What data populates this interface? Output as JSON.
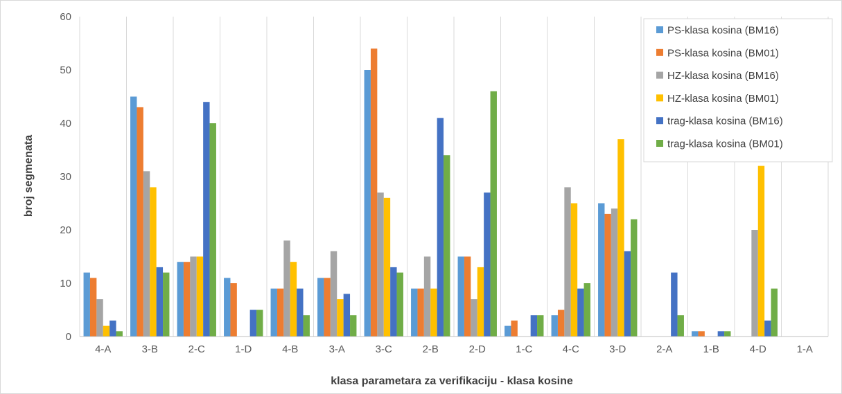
{
  "chart_data": {
    "type": "bar",
    "title": "",
    "xlabel": "klasa parametara za verifikaciju - klasa kosine",
    "ylabel": "broj segmenata",
    "ylim": [
      0,
      60
    ],
    "yticks": [
      0,
      10,
      20,
      30,
      40,
      50,
      60
    ],
    "grid": "vertical",
    "legend_position": "top-right",
    "categories": [
      "4-A",
      "3-B",
      "2-C",
      "1-D",
      "4-B",
      "3-A",
      "3-C",
      "2-B",
      "2-D",
      "1-C",
      "4-C",
      "3-D",
      "2-A",
      "1-B",
      "4-D",
      "1-A"
    ],
    "series": [
      {
        "name": "PS-klasa kosina (BM16)",
        "color": "#5b9bd5",
        "values": [
          12,
          45,
          14,
          11,
          9,
          11,
          50,
          9,
          15,
          2,
          4,
          25,
          0,
          1,
          0,
          0
        ]
      },
      {
        "name": "PS-klasa kosina (BM01)",
        "color": "#ed7d31",
        "values": [
          11,
          43,
          14,
          10,
          9,
          11,
          54,
          9,
          15,
          3,
          5,
          23,
          0,
          1,
          0,
          0
        ]
      },
      {
        "name": "HZ-klasa kosina (BM16)",
        "color": "#a5a5a5",
        "values": [
          7,
          31,
          15,
          0,
          18,
          16,
          27,
          15,
          7,
          0,
          28,
          24,
          0,
          0,
          20,
          0
        ]
      },
      {
        "name": "HZ-klasa kosina (BM01)",
        "color": "#ffc000",
        "values": [
          2,
          28,
          15,
          0,
          14,
          7,
          26,
          9,
          13,
          0,
          25,
          37,
          0,
          0,
          32,
          0
        ]
      },
      {
        "name": "trag-klasa kosina (BM16)",
        "color": "#4472c4",
        "values": [
          3,
          13,
          44,
          5,
          9,
          8,
          13,
          41,
          27,
          4,
          9,
          16,
          12,
          1,
          3,
          0
        ]
      },
      {
        "name": "trag-klasa kosina (BM01)",
        "color": "#70ad47",
        "values": [
          1,
          12,
          40,
          5,
          4,
          4,
          12,
          34,
          46,
          4,
          10,
          22,
          4,
          1,
          9,
          0
        ]
      }
    ]
  }
}
